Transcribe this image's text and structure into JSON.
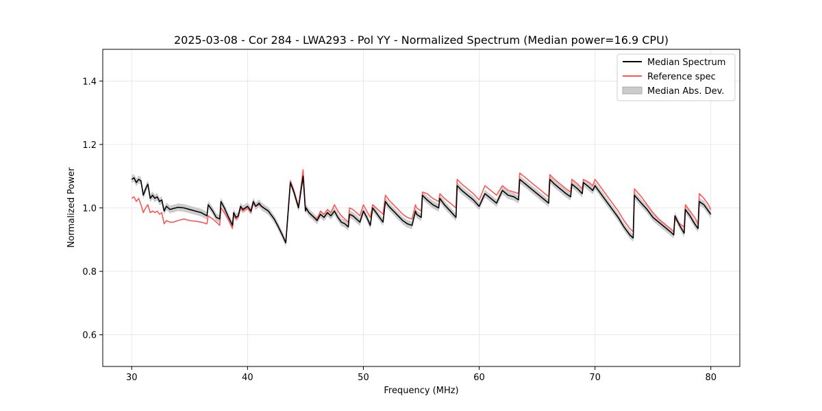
{
  "chart_data": {
    "type": "line",
    "title": "2025-03-08 - Cor 284 - LWA293 - Pol YY - Normalized Spectrum (Median power=16.9 CPU)",
    "xlabel": "Frequency (MHz)",
    "ylabel": "Normalized Power",
    "xlim": [
      27.5,
      82.5
    ],
    "ylim": [
      0.5,
      1.5
    ],
    "xticks": [
      30,
      40,
      50,
      60,
      70,
      80
    ],
    "yticks": [
      0.6,
      0.8,
      1.0,
      1.2,
      1.4
    ],
    "xtick_labels": [
      "30",
      "40",
      "50",
      "60",
      "70",
      "80"
    ],
    "ytick_labels": [
      "0.6",
      "0.8",
      "1.0",
      "1.2",
      "1.4"
    ],
    "grid": true,
    "legend_position": "top-right",
    "legend": [
      {
        "label": "Median Spectrum",
        "kind": "line",
        "color": "#000000"
      },
      {
        "label": "Reference spec",
        "kind": "line",
        "color": "#ff5555"
      },
      {
        "label": "Median Abs. Dev.",
        "kind": "patch",
        "color": "#bbbbbb"
      }
    ],
    "series": [
      {
        "name": "Median Spectrum",
        "color": "#000000",
        "x": [
          30.0,
          30.2,
          30.4,
          30.6,
          30.8,
          31.0,
          31.2,
          31.4,
          31.6,
          31.8,
          32.0,
          32.2,
          32.4,
          32.6,
          32.8,
          33.0,
          33.3,
          33.6,
          34.0,
          34.5,
          35.0,
          35.5,
          36.0,
          36.5,
          36.6,
          36.8,
          37.0,
          37.3,
          37.6,
          37.7,
          38.0,
          38.3,
          38.5,
          38.7,
          38.8,
          39.0,
          39.2,
          39.4,
          39.6,
          39.8,
          40.0,
          40.3,
          40.5,
          40.7,
          41.0,
          41.2,
          41.4,
          41.6,
          41.8,
          42.0,
          42.3,
          42.6,
          43.0,
          43.3,
          43.7,
          43.8,
          44.0,
          44.4,
          44.8,
          45.0,
          45.05,
          45.3,
          45.6,
          46.0,
          46.3,
          46.6,
          46.9,
          47.2,
          47.5,
          47.8,
          48.1,
          48.4,
          48.7,
          48.8,
          49.1,
          49.4,
          49.7,
          50.0,
          50.3,
          50.6,
          50.8,
          51.1,
          51.4,
          51.7,
          51.9,
          52.2,
          52.6,
          53.0,
          53.4,
          53.8,
          54.2,
          54.5,
          54.6,
          55.0,
          55.1,
          55.5,
          56.0,
          56.5,
          56.6,
          57.0,
          57.5,
          58.0,
          58.1,
          58.5,
          59.0,
          59.5,
          60.0,
          60.5,
          61.0,
          61.5,
          62.0,
          62.5,
          63.0,
          63.4,
          63.5,
          64.0,
          64.5,
          65.0,
          65.5,
          66.0,
          66.1,
          66.5,
          67.0,
          67.5,
          67.9,
          68.0,
          68.5,
          68.9,
          69.0,
          69.5,
          69.8,
          70.0,
          70.5,
          71.0,
          71.5,
          72.0,
          72.5,
          73.0,
          73.3,
          73.4,
          74.0,
          74.5,
          75.0,
          75.5,
          76.0,
          76.5,
          76.8,
          76.9,
          77.3,
          77.7,
          77.8,
          78.2,
          78.6,
          78.9,
          79.0,
          79.4,
          79.8,
          80.0
        ],
        "y": [
          1.09,
          1.095,
          1.08,
          1.09,
          1.085,
          1.04,
          1.06,
          1.075,
          1.03,
          1.04,
          1.03,
          1.035,
          1.02,
          1.025,
          0.99,
          1.005,
          0.995,
          0.998,
          1.002,
          1.0,
          0.995,
          0.99,
          0.985,
          0.975,
          1.01,
          1.0,
          0.99,
          0.97,
          0.965,
          1.02,
          1.0,
          0.975,
          0.96,
          0.945,
          0.985,
          0.97,
          0.975,
          1.005,
          0.995,
          1.0,
          1.005,
          0.99,
          1.02,
          1.005,
          1.015,
          1.005,
          1.0,
          0.995,
          0.99,
          0.98,
          0.965,
          0.945,
          0.915,
          0.89,
          1.08,
          1.07,
          1.05,
          1.0,
          1.1,
          0.99,
          1.0,
          0.985,
          0.975,
          0.96,
          0.98,
          0.97,
          0.985,
          0.975,
          0.99,
          0.97,
          0.955,
          0.95,
          0.94,
          0.98,
          0.975,
          0.965,
          0.955,
          0.99,
          0.97,
          0.945,
          1.0,
          0.985,
          0.97,
          0.955,
          1.02,
          1.005,
          0.99,
          0.975,
          0.96,
          0.95,
          0.945,
          0.99,
          0.98,
          0.97,
          1.04,
          1.025,
          1.01,
          1.0,
          1.03,
          1.01,
          0.99,
          0.97,
          1.07,
          1.055,
          1.04,
          1.025,
          1.005,
          1.045,
          1.03,
          1.015,
          1.055,
          1.04,
          1.035,
          1.025,
          1.09,
          1.075,
          1.06,
          1.045,
          1.03,
          1.015,
          1.09,
          1.075,
          1.06,
          1.045,
          1.035,
          1.075,
          1.06,
          1.045,
          1.08,
          1.065,
          1.055,
          1.07,
          1.045,
          1.02,
          0.995,
          0.97,
          0.94,
          0.915,
          0.905,
          1.04,
          1.015,
          0.995,
          0.97,
          0.955,
          0.94,
          0.925,
          0.915,
          0.975,
          0.945,
          0.92,
          0.995,
          0.975,
          0.95,
          0.935,
          1.02,
          1.01,
          0.99,
          0.98
        ]
      },
      {
        "name": "Reference spec",
        "color": "#ff5555",
        "x": [
          30.0,
          30.2,
          30.4,
          30.6,
          30.8,
          31.0,
          31.2,
          31.4,
          31.6,
          31.8,
          32.0,
          32.2,
          32.4,
          32.6,
          32.8,
          33.0,
          33.3,
          33.6,
          34.0,
          34.5,
          35.0,
          35.5,
          36.0,
          36.5,
          36.6,
          36.8,
          37.0,
          37.3,
          37.6,
          37.7,
          38.0,
          38.3,
          38.5,
          38.7,
          38.8,
          39.0,
          39.2,
          39.4,
          39.6,
          39.8,
          40.0,
          40.3,
          40.5,
          40.7,
          41.0,
          41.2,
          41.4,
          41.6,
          41.8,
          42.0,
          42.3,
          42.6,
          43.0,
          43.3,
          43.7,
          43.8,
          44.0,
          44.4,
          44.8,
          45.0,
          45.05,
          45.3,
          45.6,
          46.0,
          46.3,
          46.6,
          46.9,
          47.2,
          47.5,
          47.8,
          48.1,
          48.4,
          48.7,
          48.8,
          49.1,
          49.4,
          49.7,
          50.0,
          50.3,
          50.6,
          50.8,
          51.1,
          51.4,
          51.7,
          51.9,
          52.2,
          52.6,
          53.0,
          53.4,
          53.8,
          54.2,
          54.5,
          54.6,
          55.0,
          55.1,
          55.5,
          56.0,
          56.5,
          56.6,
          57.0,
          57.5,
          58.0,
          58.1,
          58.5,
          59.0,
          59.5,
          60.0,
          60.5,
          61.0,
          61.5,
          62.0,
          62.5,
          63.0,
          63.4,
          63.5,
          64.0,
          64.5,
          65.0,
          65.5,
          66.0,
          66.1,
          66.5,
          67.0,
          67.5,
          67.9,
          68.0,
          68.5,
          68.9,
          69.0,
          69.5,
          69.8,
          70.0,
          70.5,
          71.0,
          71.5,
          72.0,
          72.5,
          73.0,
          73.3,
          73.4,
          74.0,
          74.5,
          75.0,
          75.5,
          76.0,
          76.5,
          76.8,
          76.9,
          77.3,
          77.7,
          77.8,
          78.2,
          78.6,
          78.9,
          79.0,
          79.4,
          79.8,
          80.0
        ],
        "y": [
          1.03,
          1.035,
          1.02,
          1.03,
          1.01,
          0.985,
          1.0,
          1.01,
          0.985,
          0.99,
          0.985,
          0.99,
          0.98,
          0.985,
          0.95,
          0.96,
          0.955,
          0.955,
          0.96,
          0.965,
          0.96,
          0.958,
          0.955,
          0.95,
          0.975,
          0.97,
          0.965,
          0.955,
          0.945,
          1.0,
          0.985,
          0.965,
          0.95,
          0.935,
          0.975,
          0.965,
          0.97,
          1.0,
          0.99,
          0.995,
          1.0,
          0.985,
          1.015,
          1.005,
          1.01,
          1.005,
          1.0,
          0.995,
          0.99,
          0.98,
          0.965,
          0.945,
          0.915,
          0.89,
          1.085,
          1.075,
          1.055,
          1.005,
          1.12,
          0.995,
          1.0,
          0.985,
          0.975,
          0.965,
          0.99,
          0.98,
          0.995,
          0.985,
          1.01,
          0.99,
          0.975,
          0.965,
          0.955,
          1.0,
          0.995,
          0.985,
          0.975,
          1.01,
          0.99,
          0.97,
          1.01,
          1.0,
          0.99,
          0.98,
          1.04,
          1.025,
          1.01,
          0.995,
          0.98,
          0.97,
          0.965,
          1.01,
          1.0,
          0.99,
          1.05,
          1.045,
          1.03,
          1.02,
          1.045,
          1.03,
          1.015,
          1.0,
          1.09,
          1.075,
          1.06,
          1.045,
          1.025,
          1.07,
          1.055,
          1.04,
          1.07,
          1.055,
          1.05,
          1.045,
          1.11,
          1.095,
          1.08,
          1.065,
          1.05,
          1.035,
          1.105,
          1.09,
          1.075,
          1.06,
          1.05,
          1.09,
          1.075,
          1.06,
          1.09,
          1.08,
          1.07,
          1.09,
          1.065,
          1.04,
          1.015,
          0.99,
          0.96,
          0.935,
          0.925,
          1.06,
          1.035,
          1.01,
          0.985,
          0.965,
          0.95,
          0.935,
          0.925,
          0.965,
          0.95,
          0.94,
          1.01,
          0.99,
          0.97,
          0.95,
          1.045,
          1.03,
          1.01,
          0.995
        ]
      }
    ],
    "mad_band": {
      "name": "Median Abs. Dev.",
      "half_width": 0.012
    }
  }
}
